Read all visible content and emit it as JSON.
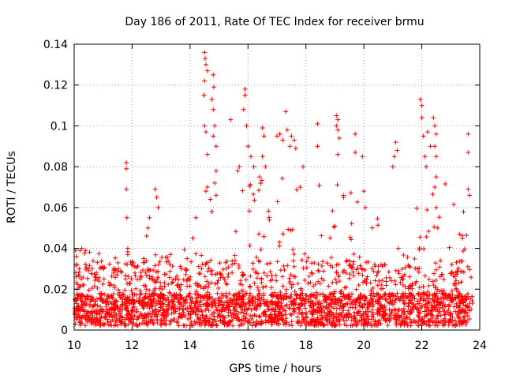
{
  "chart_data": {
    "type": "scatter",
    "title": "Day 186 of 2011, Rate Of TEC Index for receiver brmu",
    "xlabel": "GPS time / hours",
    "ylabel": "ROTI / TECUs",
    "xlim": [
      10,
      24
    ],
    "ylim": [
      0,
      0.14
    ],
    "x_ticks": [
      "10",
      "12",
      "14",
      "16",
      "18",
      "20",
      "22",
      "24"
    ],
    "y_ticks": [
      "0",
      "0.02",
      "0.04",
      "0.06",
      "0.08",
      "0.1",
      "0.12",
      "0.14"
    ],
    "grid": true,
    "marker": "+",
    "color": "#ff0000",
    "series": [
      {
        "name": "ROTI",
        "points": [
          [
            10.05,
            0.039
          ],
          [
            10.08,
            0.036
          ],
          [
            10.1,
            0.032
          ],
          [
            10.15,
            0.027
          ],
          [
            10.25,
            0.025
          ],
          [
            10.3,
            0.022
          ],
          [
            11.8,
            0.082
          ],
          [
            11.8,
            0.079
          ],
          [
            11.8,
            0.069
          ],
          [
            11.82,
            0.055
          ],
          [
            11.85,
            0.04
          ],
          [
            11.85,
            0.037
          ],
          [
            12.4,
            0.035
          ],
          [
            12.5,
            0.046
          ],
          [
            12.55,
            0.05
          ],
          [
            12.6,
            0.055
          ],
          [
            12.8,
            0.069
          ],
          [
            12.85,
            0.065
          ],
          [
            12.9,
            0.06
          ],
          [
            13.5,
            0.025
          ],
          [
            13.7,
            0.03
          ],
          [
            13.9,
            0.035
          ],
          [
            14.1,
            0.045
          ],
          [
            14.2,
            0.055
          ],
          [
            14.5,
            0.136
          ],
          [
            14.52,
            0.133
          ],
          [
            14.55,
            0.13
          ],
          [
            14.6,
            0.127
          ],
          [
            14.5,
            0.122
          ],
          [
            14.48,
            0.115
          ],
          [
            14.5,
            0.1
          ],
          [
            14.55,
            0.097
          ],
          [
            14.6,
            0.086
          ],
          [
            14.6,
            0.07
          ],
          [
            14.55,
            0.068
          ],
          [
            14.7,
            0.064
          ],
          [
            14.8,
            0.125
          ],
          [
            14.82,
            0.119
          ],
          [
            14.75,
            0.113
          ],
          [
            14.8,
            0.108
          ],
          [
            14.85,
            0.1
          ],
          [
            14.8,
            0.095
          ],
          [
            14.9,
            0.09
          ],
          [
            14.9,
            0.078
          ],
          [
            14.85,
            0.072
          ],
          [
            14.9,
            0.066
          ],
          [
            14.75,
            0.058
          ],
          [
            15.4,
            0.103
          ],
          [
            15.9,
            0.118
          ],
          [
            15.9,
            0.115
          ],
          [
            15.85,
            0.108
          ],
          [
            15.95,
            0.1
          ],
          [
            16.0,
            0.09
          ],
          [
            16.1,
            0.085
          ],
          [
            16.2,
            0.08
          ],
          [
            15.7,
            0.08
          ],
          [
            15.65,
            0.078
          ],
          [
            16.5,
            0.099
          ],
          [
            16.55,
            0.095
          ],
          [
            16.5,
            0.085
          ],
          [
            16.6,
            0.08
          ],
          [
            16.4,
            0.075
          ],
          [
            17.0,
            0.095
          ],
          [
            17.1,
            0.096
          ],
          [
            17.2,
            0.093
          ],
          [
            17.3,
            0.107
          ],
          [
            17.35,
            0.098
          ],
          [
            17.45,
            0.09
          ],
          [
            17.5,
            0.095
          ],
          [
            17.6,
            0.093
          ],
          [
            17.65,
            0.089
          ],
          [
            17.8,
            0.07
          ],
          [
            17.9,
            0.08
          ],
          [
            18.4,
            0.101
          ],
          [
            18.4,
            0.09
          ],
          [
            19.05,
            0.105
          ],
          [
            19.1,
            0.103
          ],
          [
            19.05,
            0.1
          ],
          [
            19.1,
            0.098
          ],
          [
            19.15,
            0.094
          ],
          [
            19.1,
            0.086
          ],
          [
            19.3,
            0.065
          ],
          [
            19.7,
            0.096
          ],
          [
            19.7,
            0.087
          ],
          [
            19.95,
            0.085
          ],
          [
            20.0,
            0.068
          ],
          [
            20.05,
            0.06
          ],
          [
            21.1,
            0.092
          ],
          [
            21.15,
            0.088
          ],
          [
            21.05,
            0.085
          ],
          [
            21.0,
            0.08
          ],
          [
            21.95,
            0.113
          ],
          [
            22.0,
            0.11
          ],
          [
            22.0,
            0.104
          ],
          [
            22.05,
            0.095
          ],
          [
            22.1,
            0.085
          ],
          [
            22.15,
            0.08
          ],
          [
            22.2,
            0.097
          ],
          [
            22.3,
            0.09
          ],
          [
            22.4,
            0.104
          ],
          [
            22.45,
            0.1
          ],
          [
            22.5,
            0.096
          ],
          [
            22.45,
            0.09
          ],
          [
            22.5,
            0.085
          ],
          [
            22.5,
            0.075
          ],
          [
            22.45,
            0.07
          ],
          [
            22.5,
            0.06
          ],
          [
            22.55,
            0.05
          ],
          [
            23.6,
            0.096
          ],
          [
            23.6,
            0.087
          ],
          [
            23.6,
            0.069
          ],
          [
            23.65,
            0.066
          ],
          [
            23.4,
            0.045
          ],
          [
            23.3,
            0.047
          ]
        ]
      }
    ]
  }
}
